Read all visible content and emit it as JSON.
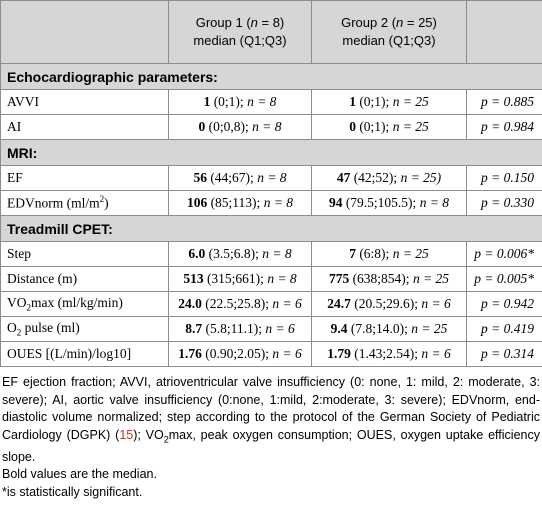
{
  "header": {
    "group1_line1": "Group 1 (",
    "group1_n": "n",
    "group1_eq": " = 8)",
    "group1_line2": "median (Q1;Q3)",
    "group2_line1": "Group 2 (",
    "group2_n": "n",
    "group2_eq": " = 25)",
    "group2_line2": "median (Q1;Q3)"
  },
  "sections": {
    "echo": "Echocardiographic parameters:",
    "mri": "MRI:",
    "cpet": "Treadmill CPET:"
  },
  "rows": {
    "avvi": {
      "label": "AVVI",
      "g1b": "1",
      "g1r": " (0;1); ",
      "g1n": "n = 8",
      "g2b": "1",
      "g2r": " (0;1); ",
      "g2n": "n = 25",
      "p": "p = 0.885"
    },
    "ai": {
      "label": "AI",
      "g1b": "0",
      "g1r": " (0;0,8); ",
      "g1n": "n = 8",
      "g2b": "0",
      "g2r": " (0;1); ",
      "g2n": "n = 25",
      "p": "p = 0.984"
    },
    "ef": {
      "label": "EF",
      "g1b": "56",
      "g1r": " (44;67); ",
      "g1n": "n = 8",
      "g2b": "47",
      "g2r": " (42;52); ",
      "g2n": "n = 25)",
      "p": "p = 0.150"
    },
    "edv": {
      "label": "EDVnorm (ml/m",
      "label_sup": "2",
      "label_end": ")",
      "g1b": "106",
      "g1r": " (85;113); ",
      "g1n": "n = 8",
      "g2b": "94",
      "g2r": " (79.5;105.5); ",
      "g2n": "n = 8",
      "p": "p = 0.330"
    },
    "step": {
      "label": "Step",
      "g1b": "6.0",
      "g1r": " (3.5;6.8); ",
      "g1n": "n = 8",
      "g2b": "7",
      "g2r": " (6:8); ",
      "g2n": "n = 25",
      "p": "p = 0.006*"
    },
    "distance": {
      "label": "Distance (m)",
      "g1b": "513",
      "g1r": " (315;661); ",
      "g1n": "n = 8",
      "g2b": "775",
      "g2r": " (638;854); ",
      "g2n": "n = 25",
      "p": "p = 0.005*"
    },
    "vo2": {
      "label_a": "VO",
      "label_sub": "2",
      "label_b": "max (ml/kg/min)",
      "g1b": "24.0",
      "g1r": " (22.5;25.8); ",
      "g1n": "n = 6",
      "g2b": "24.7",
      "g2r": " (20.5;29.6); ",
      "g2n": "n = 6",
      "p": "p = 0.942"
    },
    "o2": {
      "label_a": "O",
      "label_sub": "2",
      "label_b": " pulse (ml)",
      "g1b": "8.7",
      "g1r": " (5.8;11.1); ",
      "g1n": "n = 6",
      "g2b": "9.4",
      "g2r": " (7.8;14.0); ",
      "g2n": "n = 25",
      "p": "p = 0.419"
    },
    "oues": {
      "label": "OUES [(L/min)/log10]",
      "g1b": "1.76",
      "g1r": " (0.90;2.05); ",
      "g1n": "n = 6",
      "g2b": "1.79",
      "g2r": " (1.43;2.54); ",
      "g2n": "n = 6",
      "p": "p = 0.314"
    }
  },
  "notes": {
    "line1_a": "EF ejection fraction; AVVI, atrioventricular valve insufficiency (0: none, 1: mild, 2: moderate, 3: severe); AI, aortic valve insufficiency (0:none, 1:mild, 2:moderate, 3: severe); EDVnorm, end-diastolic volume normalized; step according to the protocol of the German Society of Pediatric Cardiology (DGPK) (",
    "ref": "15",
    "line1_b": "); VO",
    "line1_sub": "2",
    "line1_c": "max, peak oxygen consumption; OUES, oxygen uptake efficiency slope.",
    "line2": "Bold values are the median.",
    "line3": "*is statistically significant."
  }
}
